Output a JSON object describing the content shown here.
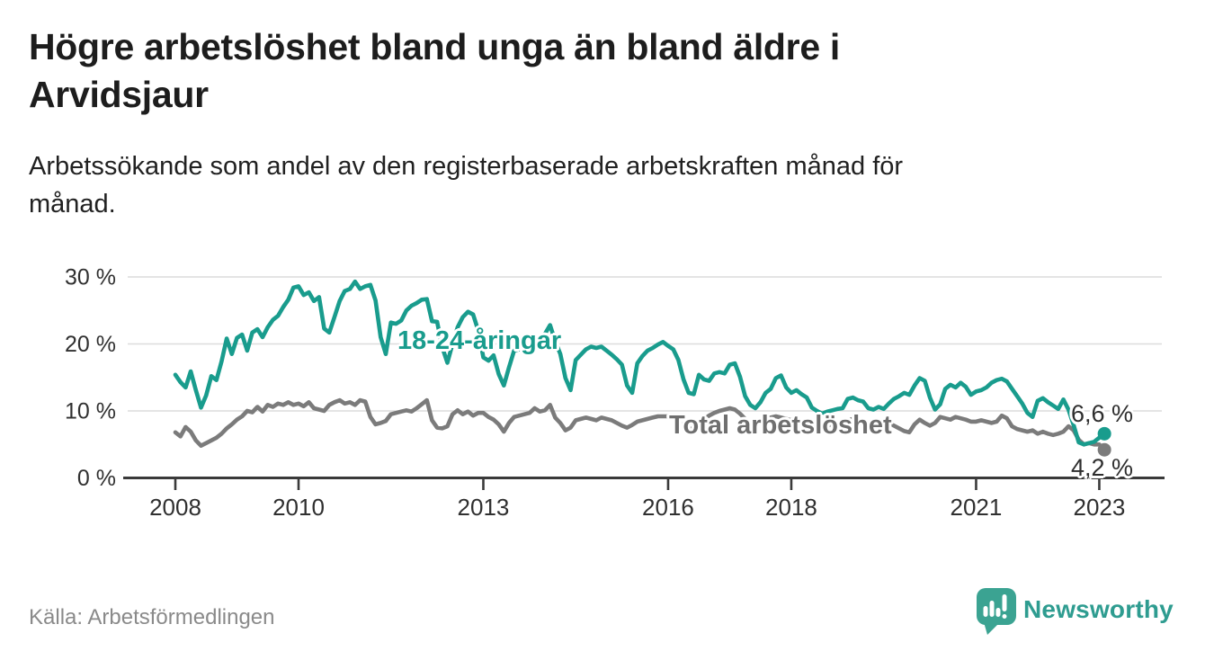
{
  "header": {
    "title": "Högre arbetslöshet bland unga än bland äldre i Arvidsjaur",
    "title_lines": [
      "Högre arbetslöshet bland unga än bland äldre i",
      "Arvidsjaur"
    ],
    "subtitle": "Arbetssökande som andel av den registerbaserade arbetskraften månad för månad.",
    "subtitle_lines": [
      "Arbetssökande som andel av den registerbaserade arbetskraften månad för",
      "månad."
    ]
  },
  "chart_data": {
    "type": "line",
    "title": "Högre arbetslöshet bland unga än bland äldre i Arvidsjaur",
    "subtitle": "Arbetssökande som andel av den registerbaserade arbetskraften månad för månad.",
    "x_unit": "month",
    "x_start": "2008-01",
    "x_end": "2023-02",
    "grid": true,
    "legend_position": "inline-labels",
    "y_axis": {
      "range": [
        0,
        32
      ],
      "ticks": [
        {
          "value": 0,
          "label": "0 %"
        },
        {
          "value": 10,
          "label": "10 %"
        },
        {
          "value": 20,
          "label": "20 %"
        },
        {
          "value": 30,
          "label": "30 %"
        }
      ]
    },
    "x_axis": {
      "ticks": [
        {
          "year": 2008,
          "label": "2008"
        },
        {
          "year": 2010,
          "label": "2010"
        },
        {
          "year": 2013,
          "label": "2013"
        },
        {
          "year": 2016,
          "label": "2016"
        },
        {
          "year": 2018,
          "label": "2018"
        },
        {
          "year": 2021,
          "label": "2021"
        },
        {
          "year": 2023,
          "label": "2023"
        }
      ]
    },
    "series": [
      {
        "id": "total",
        "name": "Total arbetslöshet",
        "color": "#7b7b7b",
        "end_label": "4,2 %",
        "end_value": 4.2,
        "values": [
          6.8,
          6.2,
          7.6,
          6.9,
          5.6,
          4.8,
          5.2,
          5.6,
          6.0,
          6.6,
          7.4,
          8.0,
          8.7,
          9.2,
          10.0,
          9.8,
          10.6,
          9.9,
          10.9,
          10.6,
          11.1,
          10.9,
          11.3,
          10.9,
          11.1,
          10.7,
          11.3,
          10.4,
          10.2,
          10.0,
          10.9,
          11.3,
          11.6,
          11.1,
          11.3,
          10.9,
          11.6,
          11.4,
          9.1,
          8.0,
          8.2,
          8.5,
          9.5,
          9.7,
          9.9,
          10.1,
          9.9,
          10.4,
          11.0,
          11.6,
          8.6,
          7.5,
          7.4,
          7.7,
          9.5,
          10.1,
          9.5,
          9.9,
          9.3,
          9.7,
          9.7,
          9.1,
          8.7,
          8.0,
          6.9,
          8.2,
          9.1,
          9.3,
          9.5,
          9.7,
          10.4,
          9.9,
          10.1,
          10.9,
          9.0,
          8.2,
          7.1,
          7.5,
          8.6,
          8.8,
          9.0,
          8.8,
          8.6,
          9.0,
          8.8,
          8.6,
          8.2,
          7.8,
          7.5,
          7.9,
          8.4,
          8.6,
          8.8,
          9.0,
          9.2,
          9.2,
          9.2,
          9.0,
          8.4,
          7.6,
          7.2,
          7.5,
          8.2,
          8.8,
          9.3,
          9.7,
          10.0,
          10.2,
          10.4,
          10.2,
          9.6,
          8.8,
          8.2,
          8.0,
          8.4,
          8.8,
          9.0,
          9.2,
          9.0,
          8.8,
          8.6,
          8.8,
          8.4,
          7.8,
          7.2,
          7.0,
          7.4,
          7.8,
          8.0,
          8.2,
          8.4,
          8.6,
          8.8,
          8.6,
          8.4,
          8.0,
          7.6,
          7.8,
          8.0,
          8.2,
          7.8,
          7.4,
          7.0,
          6.8,
          8.0,
          8.7,
          8.2,
          7.8,
          8.2,
          9.1,
          8.9,
          8.7,
          9.1,
          8.9,
          8.7,
          8.4,
          8.4,
          8.6,
          8.4,
          8.2,
          8.4,
          9.3,
          8.9,
          7.7,
          7.3,
          7.1,
          6.9,
          7.1,
          6.6,
          6.9,
          6.6,
          6.4,
          6.6,
          6.9,
          7.7,
          7.1,
          5.7,
          5.0,
          5.2,
          5.0,
          5.0,
          4.2
        ]
      },
      {
        "id": "youth",
        "name": "18-24-åringar",
        "color": "#199c8d",
        "end_label": "6,6 %",
        "end_value": 6.6,
        "values": [
          15.4,
          14.3,
          13.5,
          15.9,
          13.1,
          10.5,
          12.3,
          15.2,
          14.6,
          17.4,
          20.8,
          18.5,
          20.9,
          21.4,
          19.0,
          21.7,
          22.2,
          21.0,
          22.5,
          23.6,
          24.2,
          25.5,
          26.6,
          28.4,
          28.6,
          27.3,
          27.7,
          26.4,
          27.0,
          22.3,
          21.7,
          24.0,
          26.4,
          27.9,
          28.2,
          29.3,
          28.2,
          28.6,
          28.8,
          26.5,
          21.0,
          18.5,
          23.2,
          23.0,
          23.5,
          25.0,
          25.7,
          26.1,
          26.6,
          26.7,
          23.4,
          23.3,
          19.5,
          17.2,
          20.0,
          22.5,
          24.0,
          24.8,
          24.4,
          22.0,
          18.0,
          17.5,
          18.3,
          15.5,
          13.8,
          16.5,
          19.0,
          19.2,
          19.3,
          19.9,
          20.5,
          21.0,
          21.5,
          22.8,
          20.4,
          18.5,
          14.9,
          13.1,
          17.6,
          18.4,
          19.2,
          19.6,
          19.4,
          19.6,
          19.0,
          18.4,
          17.7,
          16.9,
          13.8,
          12.7,
          17.1,
          18.2,
          19.0,
          19.4,
          19.9,
          20.3,
          19.7,
          19.2,
          17.6,
          14.7,
          12.7,
          12.5,
          15.4,
          14.7,
          14.5,
          15.6,
          15.8,
          15.6,
          16.9,
          17.1,
          15.1,
          12.2,
          10.9,
          10.4,
          11.3,
          12.7,
          13.3,
          14.9,
          15.3,
          13.5,
          12.7,
          13.1,
          12.5,
          12.0,
          10.5,
          10.0,
          9.6,
          9.9,
          10.1,
          10.3,
          10.4,
          11.8,
          12.0,
          11.6,
          11.4,
          10.4,
          10.2,
          10.6,
          10.3,
          11.1,
          11.8,
          12.2,
          12.7,
          12.4,
          13.8,
          14.9,
          14.5,
          12.0,
          10.2,
          11.0,
          13.3,
          13.9,
          13.5,
          14.2,
          13.6,
          12.4,
          12.9,
          13.1,
          13.5,
          14.2,
          14.6,
          14.8,
          14.4,
          13.3,
          12.2,
          11.1,
          9.7,
          9.1,
          11.5,
          11.9,
          11.3,
          10.8,
          10.3,
          11.7,
          10.2,
          7.9,
          5.3,
          5.0,
          5.2,
          5.4,
          6.0,
          6.6
        ]
      }
    ]
  },
  "source": {
    "label": "Källa: Arbetsförmedlingen"
  },
  "branding": {
    "wordmark": "Newsworthy",
    "logo_icon": "speech-bubble-bar-chart-icon",
    "logo_color": "#3ba392",
    "wordmark_color": "#2e9c90"
  },
  "colors": {
    "accent_teal": "#199c8d",
    "line_gray": "#7b7b7b",
    "axis": "#3a3a3a",
    "gridline": "#dcdcdc",
    "title_text": "#1d1d1d",
    "axis_text": "#303030",
    "source_text": "#8a8a8a"
  }
}
